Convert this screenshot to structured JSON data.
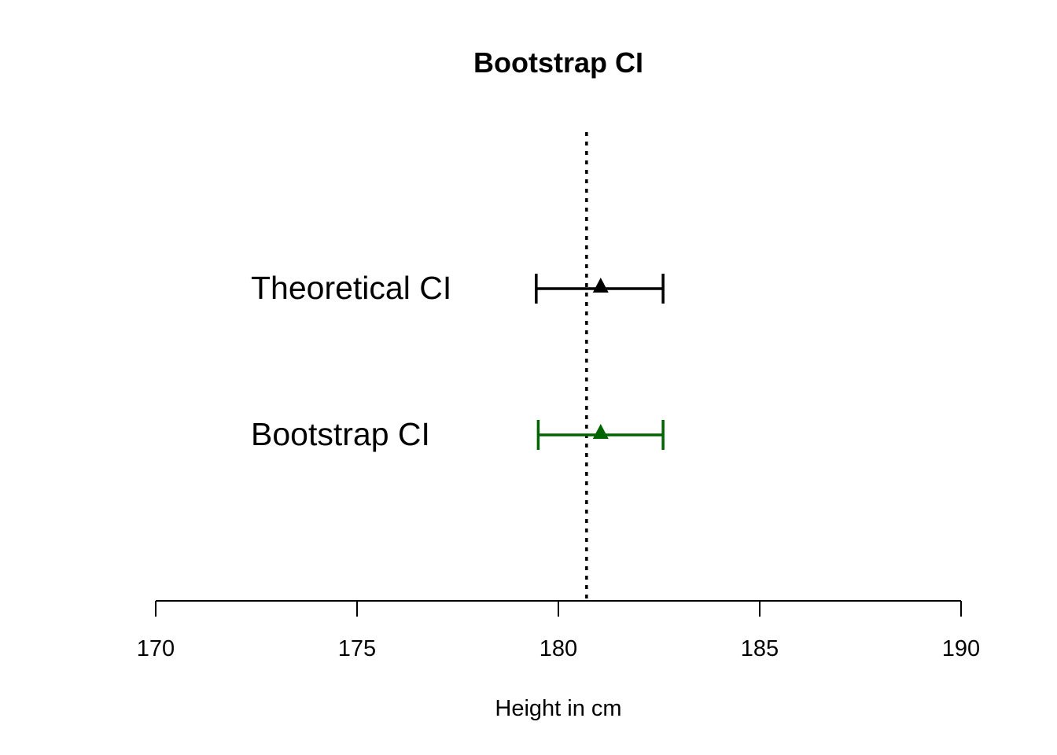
{
  "chart_data": {
    "type": "errorbar",
    "title": "Bootstrap CI",
    "xlabel": "Height in cm",
    "ylabel": "",
    "xlim": [
      170,
      190
    ],
    "x_ticks": [
      "170",
      "175",
      "180",
      "185",
      "190"
    ],
    "reference_line": {
      "x": 180.7,
      "style": "dotted",
      "color": "#000000"
    },
    "series": [
      {
        "name": "Theoretical CI",
        "estimate": 181.05,
        "lower": 179.45,
        "upper": 182.6,
        "color": "#000000"
      },
      {
        "name": "Bootstrap CI",
        "estimate": 181.05,
        "lower": 179.5,
        "upper": 182.6,
        "color": "#006400"
      }
    ],
    "grid": false,
    "legend": "none"
  }
}
